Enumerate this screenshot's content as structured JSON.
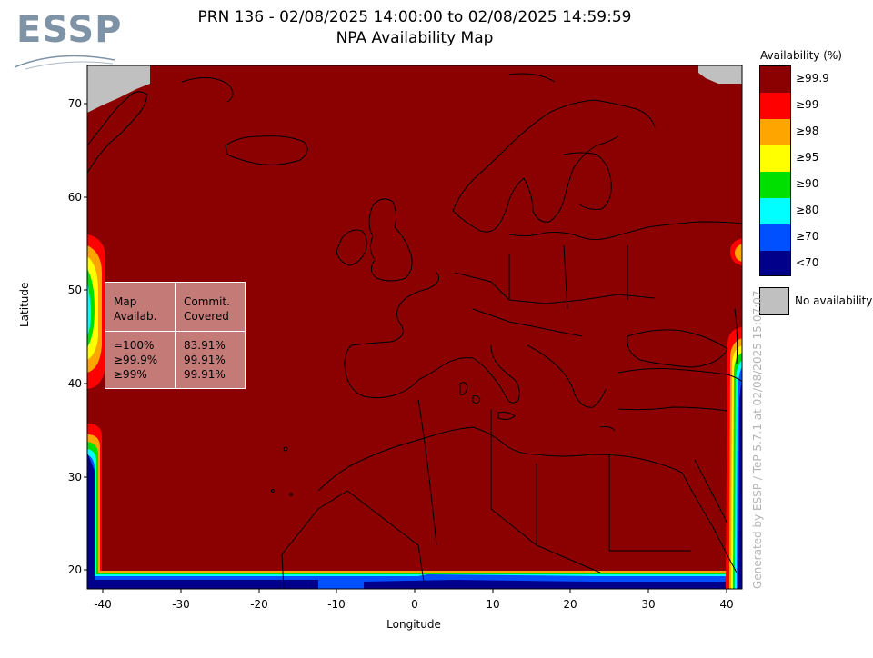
{
  "header": {
    "logo_text": "ESSP",
    "title_line1": "PRN 136 - 02/08/2025 14:00:00 to 02/08/2025 14:59:59",
    "title_line2": "NPA Availability Map"
  },
  "axes": {
    "xlabel": "Longitude",
    "ylabel": "Latitude",
    "xticks": [
      "-40",
      "-30",
      "-20",
      "-10",
      "0",
      "10",
      "20",
      "30",
      "40"
    ],
    "yticks": [
      "70",
      "60",
      "50",
      "40",
      "30",
      "20"
    ],
    "xlim": [
      -42,
      42
    ],
    "ylim": [
      18,
      74
    ]
  },
  "legend": {
    "title": "Availability (%)",
    "items": [
      {
        "label": "≥99.9",
        "color": "#8b0000"
      },
      {
        "label": "≥99",
        "color": "#ff0000"
      },
      {
        "label": "≥98",
        "color": "#ffa500"
      },
      {
        "label": "≥95",
        "color": "#ffff00"
      },
      {
        "label": "≥90",
        "color": "#00e000"
      },
      {
        "label": "≥80",
        "color": "#00ffff"
      },
      {
        "label": "≥70",
        "color": "#0050ff"
      },
      {
        "label": "<70",
        "color": "#00008b"
      }
    ],
    "no_availability_label": "No availability",
    "no_availability_color": "#c0c0c0"
  },
  "stats": {
    "col1_header_line1": "Map",
    "col1_header_line2": "Availab.",
    "col2_header_line1": "Commit.",
    "col2_header_line2": "Covered",
    "rows": [
      {
        "map": "=100%",
        "covered": "83.91%"
      },
      {
        "map": "≥99.9%",
        "covered": "99.91%"
      },
      {
        "map": "≥99%",
        "covered": "99.91%"
      }
    ]
  },
  "watermark": "Generated by ESSP / TeP 5.7.1 at 02/08/2025 15:07:07"
}
